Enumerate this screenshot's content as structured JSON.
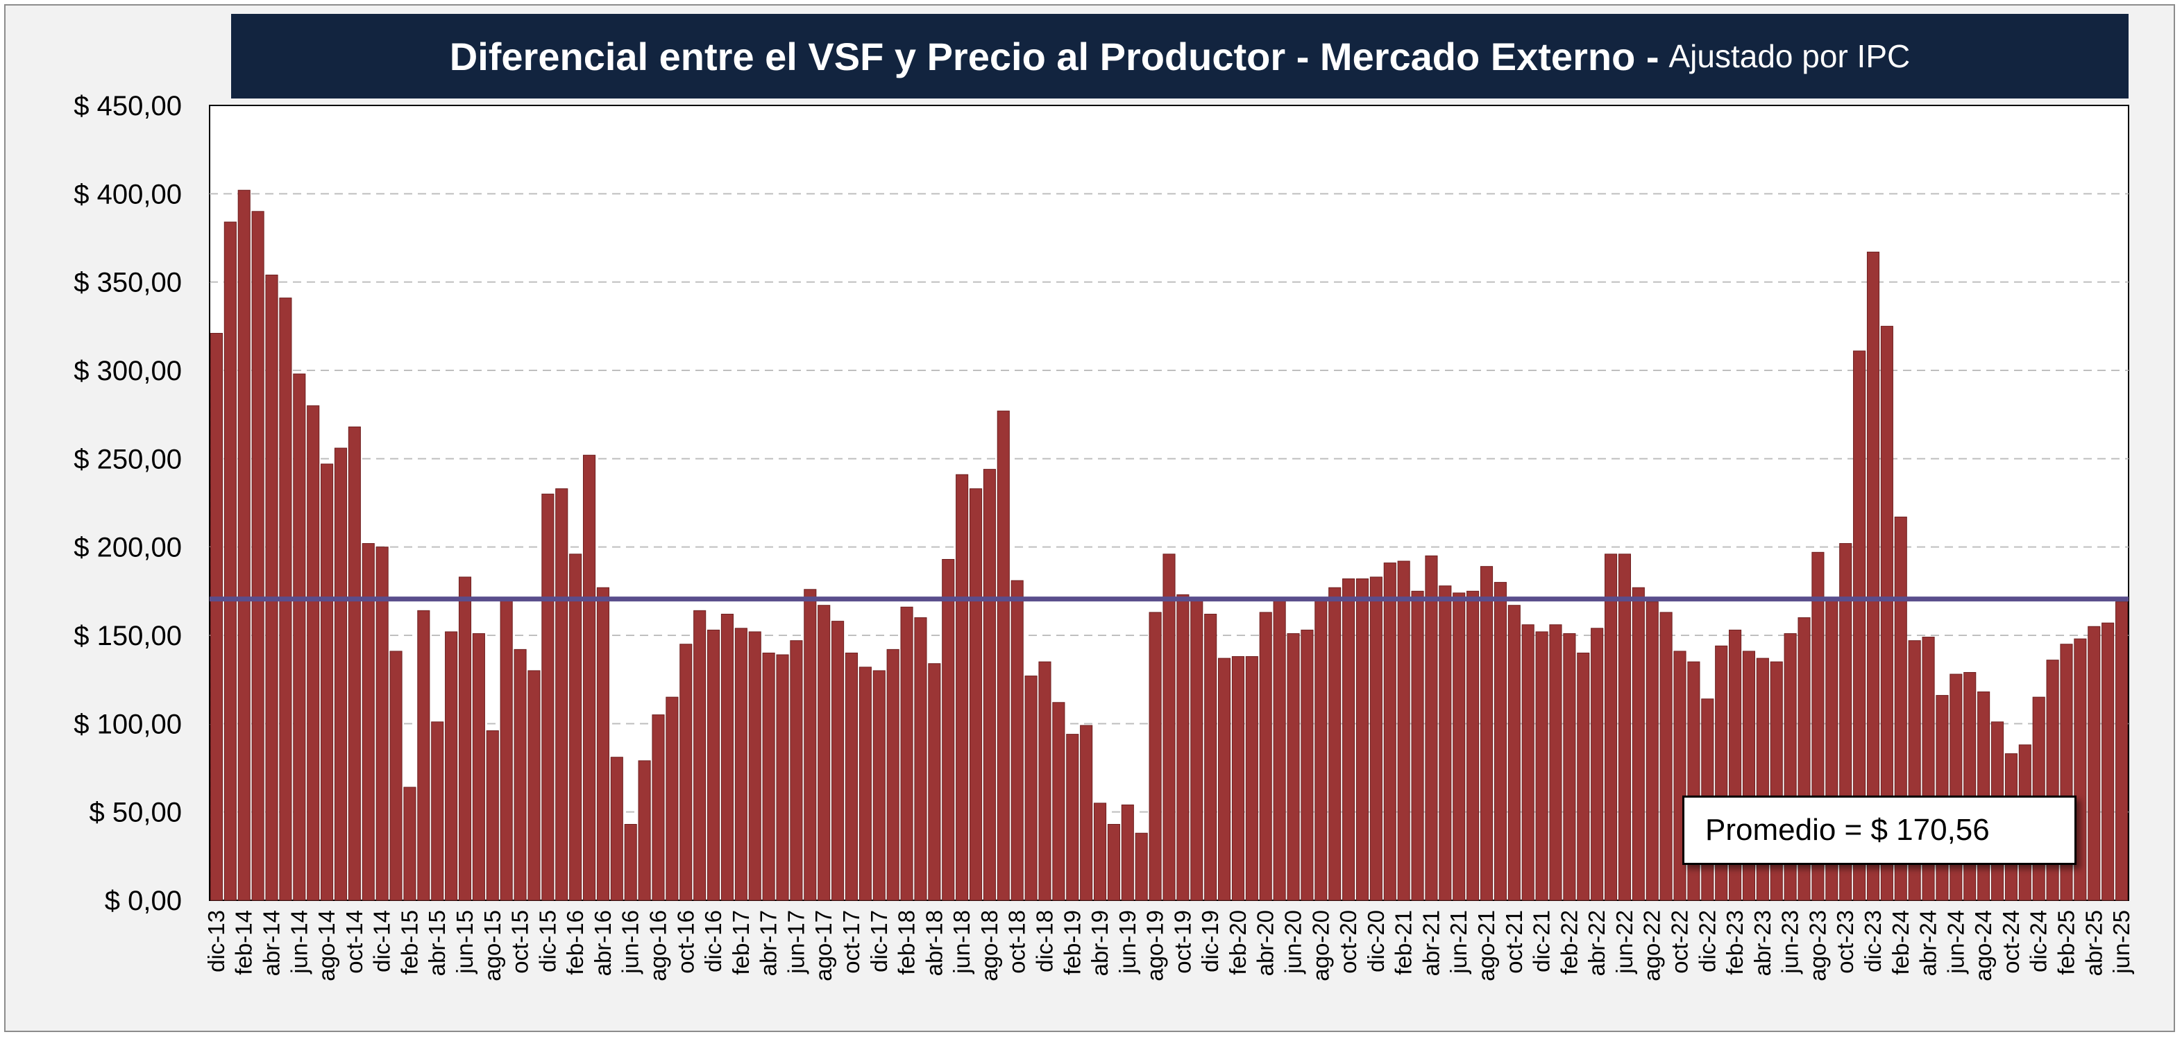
{
  "title": "Diferencial entre el VSF y Precio al Productor - Mercado Externo -",
  "subtitle": "Ajustado por IPC",
  "average_label": "Promedio = $ 170,56",
  "colors": {
    "bar": "#9b3535",
    "bar_edge": "#6e1f1f",
    "average_line": "#5a4e8c",
    "title_bg": "#12243f",
    "grid": "#bfbfbf"
  },
  "chart_data": {
    "type": "bar",
    "title": "Diferencial entre el VSF y Precio al Productor - Mercado Externo - Ajustado por IPC",
    "xlabel": "",
    "ylabel": "",
    "ylim": [
      0,
      450
    ],
    "ytick_values": [
      0,
      50,
      100,
      150,
      200,
      250,
      300,
      350,
      400,
      450
    ],
    "ytick_labels": [
      "$ 0,00",
      "$ 50,00",
      "$ 100,00",
      "$ 150,00",
      "$ 200,00",
      "$ 250,00",
      "$ 300,00",
      "$ 350,00",
      "$ 400,00",
      "$ 450,00"
    ],
    "grid": "horizontal-dashed",
    "average": 170.56,
    "start_month": "dic-13",
    "xtick_labels": [
      "dic-13",
      "feb-14",
      "abr-14",
      "jun-14",
      "ago-14",
      "oct-14",
      "dic-14",
      "feb-15",
      "abr-15",
      "jun-15",
      "ago-15",
      "oct-15",
      "dic-15",
      "feb-16",
      "abr-16",
      "jun-16",
      "ago-16",
      "oct-16",
      "dic-16",
      "feb-17",
      "abr-17",
      "jun-17",
      "ago-17",
      "oct-17",
      "dic-17",
      "feb-18",
      "abr-18",
      "jun-18",
      "ago-18",
      "oct-18",
      "dic-18",
      "feb-19",
      "abr-19",
      "jun-19",
      "ago-19",
      "oct-19",
      "dic-19",
      "feb-20",
      "abr-20",
      "jun-20",
      "ago-20",
      "oct-20",
      "dic-20",
      "feb-21",
      "abr-21",
      "jun-21",
      "ago-21",
      "oct-21",
      "dic-21",
      "feb-22",
      "abr-22",
      "jun-22",
      "ago-22",
      "oct-22",
      "dic-22",
      "feb-23",
      "abr-23",
      "jun-23",
      "ago-23",
      "oct-23",
      "dic-23",
      "feb-24",
      "abr-24",
      "jun-24",
      "ago-24",
      "oct-24",
      "dic-24",
      "feb-25",
      "abr-25",
      "jun-25"
    ],
    "values": [
      321,
      384,
      402,
      390,
      354,
      341,
      298,
      280,
      247,
      256,
      268,
      202,
      200,
      141,
      64,
      164,
      101,
      152,
      183,
      151,
      96,
      170,
      142,
      130,
      230,
      233,
      196,
      252,
      177,
      81,
      43,
      79,
      105,
      115,
      145,
      164,
      153,
      162,
      154,
      152,
      140,
      139,
      147,
      176,
      167,
      158,
      140,
      132,
      130,
      142,
      166,
      160,
      134,
      193,
      241,
      233,
      244,
      277,
      181,
      127,
      135,
      112,
      94,
      99,
      55,
      43,
      54,
      38,
      163,
      196,
      173,
      170,
      162,
      137,
      138,
      138,
      163,
      170,
      151,
      153,
      170,
      177,
      182,
      182,
      183,
      191,
      192,
      175,
      195,
      178,
      174,
      175,
      189,
      180,
      167,
      156,
      152,
      156,
      151,
      140,
      154,
      196,
      196,
      177,
      169,
      163,
      141,
      135,
      114,
      144,
      153,
      141,
      137,
      135,
      151,
      160,
      197,
      170,
      202,
      311,
      367,
      325,
      217,
      147,
      149,
      116,
      128,
      129,
      118,
      101,
      83,
      88,
      115,
      136,
      145,
      148,
      155,
      157,
      169
    ]
  }
}
